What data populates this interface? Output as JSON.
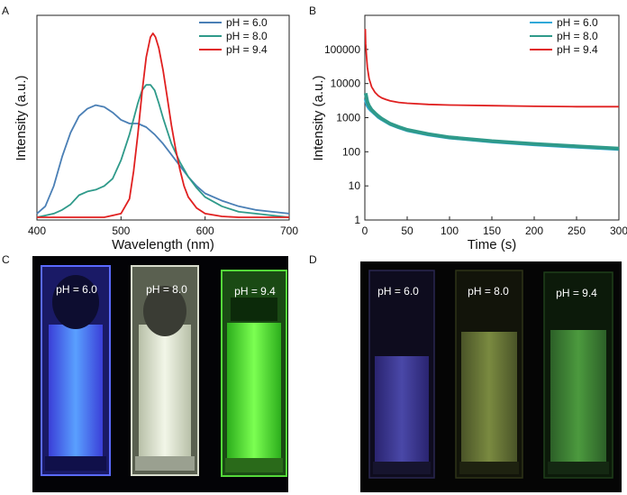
{
  "panel_labels": {
    "a": "A",
    "b": "B",
    "c": "C",
    "d": "D"
  },
  "colors": {
    "ph60": "#4a7fb5",
    "ph80": "#2f9a8a",
    "ph94": "#e02020",
    "ph60_b": "#2fa8d8"
  },
  "chart_data": [
    {
      "id": "A",
      "type": "line",
      "title": "",
      "xlabel": "Wavelength (nm)",
      "ylabel": "Intensity (a.u.)",
      "xlim": [
        400,
        700
      ],
      "xticks": [
        "400",
        "500",
        "600",
        "700"
      ],
      "yticks_shown": false,
      "legend_position": "top-right",
      "series": [
        {
          "name": "pH = 6.0",
          "color": "#4a7fb5",
          "x": [
            400,
            410,
            420,
            430,
            440,
            450,
            460,
            470,
            480,
            490,
            500,
            510,
            520,
            530,
            540,
            550,
            560,
            570,
            580,
            590,
            600,
            620,
            640,
            660,
            680,
            700
          ],
          "y": [
            0.02,
            0.06,
            0.17,
            0.33,
            0.46,
            0.55,
            0.59,
            0.61,
            0.6,
            0.57,
            0.53,
            0.51,
            0.51,
            0.49,
            0.45,
            0.4,
            0.34,
            0.28,
            0.22,
            0.17,
            0.13,
            0.09,
            0.06,
            0.04,
            0.03,
            0.02
          ]
        },
        {
          "name": "pH = 8.0",
          "color": "#2f9a8a",
          "x": [
            400,
            410,
            420,
            430,
            440,
            450,
            460,
            470,
            480,
            490,
            500,
            510,
            520,
            525,
            530,
            535,
            540,
            545,
            550,
            560,
            570,
            580,
            590,
            600,
            620,
            640,
            660,
            680,
            700
          ],
          "y": [
            0.0,
            0.01,
            0.02,
            0.04,
            0.07,
            0.12,
            0.14,
            0.15,
            0.17,
            0.21,
            0.31,
            0.45,
            0.62,
            0.69,
            0.72,
            0.72,
            0.69,
            0.62,
            0.54,
            0.4,
            0.3,
            0.22,
            0.16,
            0.11,
            0.06,
            0.03,
            0.02,
            0.01,
            0.0
          ]
        },
        {
          "name": "pH = 9.4",
          "color": "#e02020",
          "x": [
            400,
            480,
            500,
            510,
            515,
            520,
            525,
            530,
            535,
            538,
            541,
            545,
            550,
            555,
            560,
            565,
            570,
            575,
            580,
            590,
            600,
            620,
            640,
            700
          ],
          "y": [
            0.0,
            0.0,
            0.02,
            0.1,
            0.25,
            0.45,
            0.68,
            0.87,
            0.98,
            1.0,
            0.98,
            0.92,
            0.8,
            0.65,
            0.5,
            0.37,
            0.26,
            0.17,
            0.11,
            0.05,
            0.02,
            0.005,
            0.0,
            0.0
          ]
        }
      ]
    },
    {
      "id": "B",
      "type": "line",
      "title": "",
      "xlabel": "Time (s)",
      "ylabel": "Intensity (a.u.)",
      "xlim": [
        0,
        300
      ],
      "ylim": [
        1,
        1000000
      ],
      "yscale": "log",
      "xticks": [
        "0",
        "50",
        "100",
        "150",
        "200",
        "250",
        "300"
      ],
      "yticks": [
        "1",
        "10",
        "100",
        "1000",
        "10000",
        "100000"
      ],
      "legend_position": "top-right",
      "series": [
        {
          "name": "pH = 6.0",
          "color": "#2fa8d8",
          "x": [
            1,
            2,
            3,
            5,
            8,
            12,
            16,
            20,
            30,
            40,
            50,
            75,
            100,
            150,
            200,
            250,
            300
          ],
          "y": [
            3500,
            2800,
            2300,
            1900,
            1600,
            1300,
            1050,
            900,
            650,
            520,
            430,
            320,
            260,
            200,
            165,
            140,
            120
          ]
        },
        {
          "name": "pH = 8.0",
          "color": "#2f9a8a",
          "x": [
            1,
            2,
            3,
            5,
            8,
            12,
            16,
            20,
            30,
            40,
            50,
            75,
            100,
            150,
            200,
            250,
            300
          ],
          "y": [
            5200,
            3800,
            2900,
            2200,
            1700,
            1350,
            1100,
            930,
            660,
            530,
            440,
            330,
            265,
            205,
            170,
            145,
            125
          ]
        },
        {
          "name": "pH = 9.4",
          "color": "#e02020",
          "x": [
            0.5,
            1,
            2,
            3,
            5,
            8,
            12,
            16,
            20,
            25,
            30,
            40,
            50,
            75,
            100,
            150,
            200,
            250,
            300
          ],
          "y": [
            400000,
            150000,
            60000,
            30000,
            14000,
            8000,
            5500,
            4400,
            3800,
            3400,
            3100,
            2800,
            2650,
            2450,
            2350,
            2250,
            2150,
            2100,
            2100
          ]
        }
      ]
    }
  ],
  "photos": {
    "c": {
      "labels": [
        "pH = 6.0",
        "pH = 8.0",
        "pH = 9.4"
      ]
    },
    "d": {
      "labels": [
        "pH = 6.0",
        "pH = 8.0",
        "pH = 9.4"
      ]
    }
  }
}
